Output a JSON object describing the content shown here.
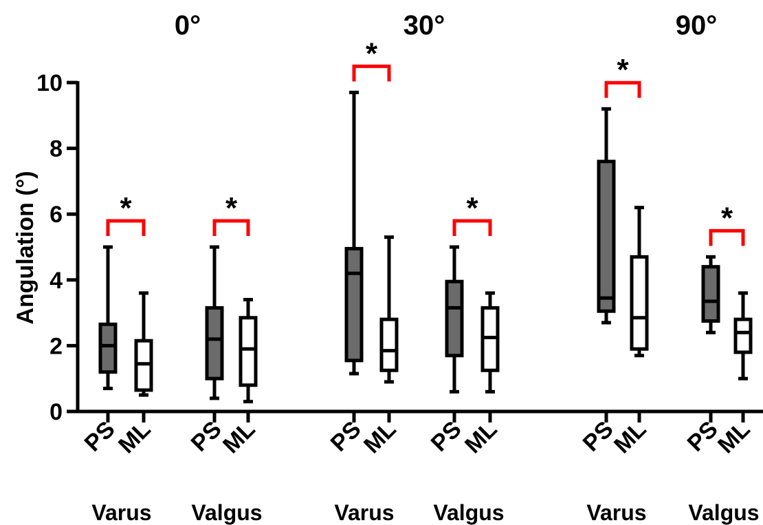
{
  "chart_data": {
    "type": "box",
    "ylabel": "Angulation (°)",
    "ylim": [
      0,
      10
    ],
    "yticks": [
      "0",
      "2",
      "4",
      "6",
      "8",
      "10"
    ],
    "significance_marker": "*",
    "colors": {
      "PS": "#6b6b6b",
      "ML": "#ffffff",
      "bracket": "#ff0000",
      "stroke": "#000000"
    },
    "groups": [
      {
        "angle": "0°",
        "conditions": [
          {
            "name": "Varus",
            "significant": true,
            "boxes": [
              {
                "label": "PS",
                "min": 0.7,
                "q1": 1.2,
                "median": 2.0,
                "q3": 2.65,
                "max": 5.0
              },
              {
                "label": "ML",
                "min": 0.5,
                "q1": 0.65,
                "median": 1.45,
                "q3": 2.15,
                "max": 3.6
              }
            ]
          },
          {
            "name": "Valgus",
            "significant": true,
            "boxes": [
              {
                "label": "PS",
                "min": 0.4,
                "q1": 1.0,
                "median": 2.2,
                "q3": 3.15,
                "max": 5.0
              },
              {
                "label": "ML",
                "min": 0.3,
                "q1": 0.8,
                "median": 1.9,
                "q3": 2.85,
                "max": 3.4
              }
            ]
          }
        ]
      },
      {
        "angle": "30°",
        "conditions": [
          {
            "name": "Varus",
            "significant": true,
            "boxes": [
              {
                "label": "PS",
                "min": 1.15,
                "q1": 1.55,
                "median": 4.2,
                "q3": 4.95,
                "max": 9.7
              },
              {
                "label": "ML",
                "min": 0.9,
                "q1": 1.25,
                "median": 1.85,
                "q3": 2.8,
                "max": 5.3
              }
            ]
          },
          {
            "name": "Valgus",
            "significant": true,
            "boxes": [
              {
                "label": "PS",
                "min": 0.6,
                "q1": 1.7,
                "median": 3.15,
                "q3": 3.95,
                "max": 5.0
              },
              {
                "label": "ML",
                "min": 0.6,
                "q1": 1.25,
                "median": 2.25,
                "q3": 3.15,
                "max": 3.6
              }
            ]
          }
        ]
      },
      {
        "angle": "90°",
        "conditions": [
          {
            "name": "Varus",
            "significant": true,
            "boxes": [
              {
                "label": "PS",
                "min": 2.7,
                "q1": 3.05,
                "median": 3.45,
                "q3": 7.6,
                "max": 9.2
              },
              {
                "label": "ML",
                "min": 1.7,
                "q1": 1.9,
                "median": 2.85,
                "q3": 4.7,
                "max": 6.2
              }
            ]
          },
          {
            "name": "Valgus",
            "significant": true,
            "boxes": [
              {
                "label": "PS",
                "min": 2.4,
                "q1": 2.75,
                "median": 3.35,
                "q3": 4.4,
                "max": 4.7
              },
              {
                "label": "ML",
                "min": 1.0,
                "q1": 1.8,
                "median": 2.4,
                "q3": 2.8,
                "max": 3.6
              }
            ]
          }
        ]
      }
    ]
  }
}
